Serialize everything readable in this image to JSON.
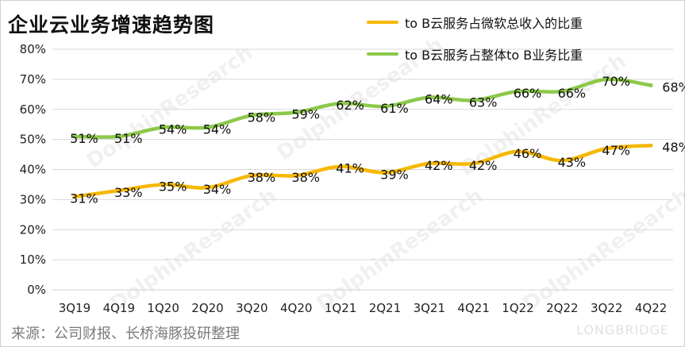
{
  "title": "企业云业务增速趋势图",
  "source": "来源：公司财报、长桥海豚投研整理",
  "watermark": {
    "text": "DolphinResearch",
    "brand": "LONGBRIDGE"
  },
  "colors": {
    "series1": "#f5b800",
    "series2": "#8cc84b",
    "grid": "#d9d9d9",
    "axis_text": "#222222"
  },
  "chart_data": {
    "type": "line",
    "title": "企业云业务增速趋势图",
    "xlabel": "",
    "ylabel": "",
    "categories": [
      "3Q19",
      "4Q19",
      "1Q20",
      "2Q20",
      "3Q20",
      "4Q20",
      "1Q21",
      "2Q21",
      "3Q21",
      "4Q21",
      "1Q22",
      "2Q22",
      "3Q22",
      "4Q22"
    ],
    "ylim": [
      0,
      80
    ],
    "yticks": [
      "0%",
      "10%",
      "20%",
      "30%",
      "40%",
      "50%",
      "60%",
      "70%",
      "80%"
    ],
    "grid": "horizontal",
    "legend": "top-right",
    "series": [
      {
        "name": "to B云服务占微软总收入的比重",
        "values": [
          31,
          33,
          35,
          34,
          38,
          38,
          41,
          39,
          42,
          42,
          46,
          43,
          47,
          48
        ],
        "labels": [
          "31%",
          "33%",
          "35%",
          "34%",
          "38%",
          "38%",
          "41%",
          "39%",
          "42%",
          "42%",
          "46%",
          "43%",
          "47%",
          "48%"
        ]
      },
      {
        "name": "to B云服务占整体to B业务比重",
        "values": [
          51,
          51,
          54,
          54,
          58,
          59,
          62,
          61,
          64,
          63,
          66,
          66,
          70,
          68
        ],
        "labels": [
          "51%",
          "51%",
          "54%",
          "54%",
          "58%",
          "59%",
          "62%",
          "61%",
          "64%",
          "63%",
          "66%",
          "66%",
          "70%",
          "68%"
        ]
      }
    ]
  }
}
